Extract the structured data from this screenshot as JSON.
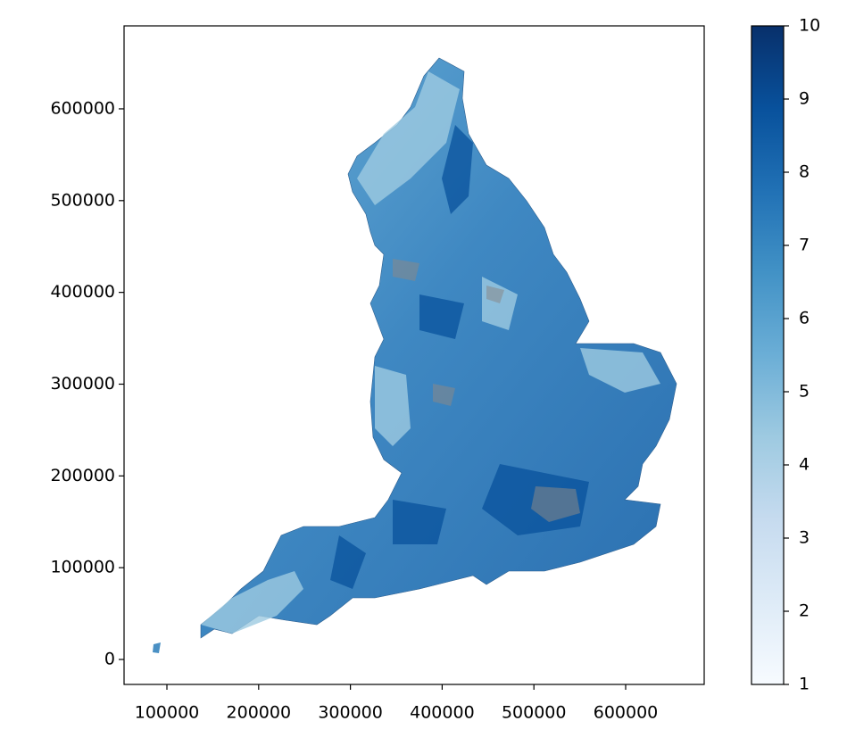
{
  "chart_data": {
    "type": "choropleth",
    "xlim": [
      53300,
      685600
    ],
    "xticks": [
      100000,
      200000,
      300000,
      400000,
      500000,
      600000
    ],
    "ylim": [
      -27200,
      690400
    ],
    "yticks": [
      0,
      100000,
      200000,
      300000,
      400000,
      500000,
      600000
    ],
    "colorbar": {
      "range": [
        1,
        10
      ],
      "ticks": [
        1,
        2,
        3,
        4,
        5,
        6,
        7,
        8,
        9,
        10
      ],
      "colors": [
        "#f7fbff",
        "#deebf7",
        "#c6dbef",
        "#9ecae1",
        "#6baed6",
        "#4292c6",
        "#2171b5",
        "#08519c",
        "#08306b"
      ]
    }
  }
}
